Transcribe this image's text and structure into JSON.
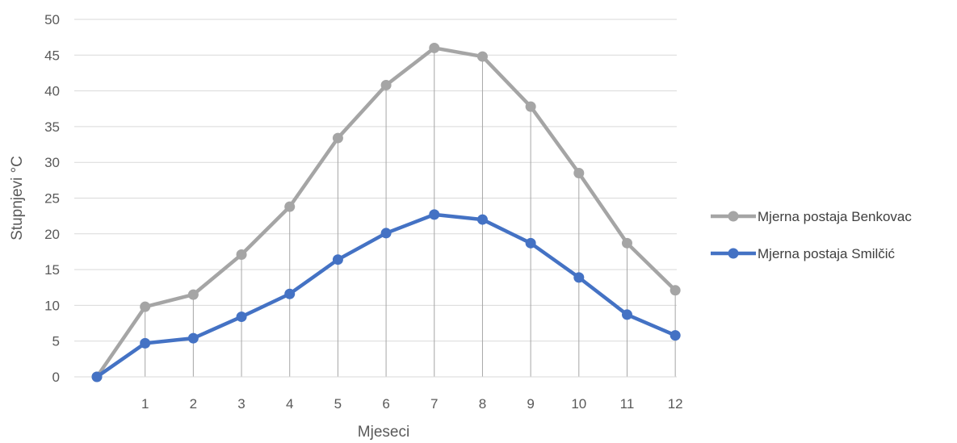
{
  "chart_data": {
    "type": "line",
    "x": [
      0,
      1,
      2,
      3,
      4,
      5,
      6,
      7,
      8,
      9,
      10,
      11,
      12
    ],
    "x_tick_labels": [
      "",
      "1",
      "2",
      "3",
      "4",
      "5",
      "6",
      "7",
      "8",
      "9",
      "10",
      "11",
      "12"
    ],
    "xlabel": "Mjeseci",
    "ylabel": "Stupnjevi °C",
    "ylim": [
      0,
      50
    ],
    "y_ticks": [
      0,
      5,
      10,
      15,
      20,
      25,
      30,
      35,
      40,
      45,
      50
    ],
    "grid": "horizontal",
    "drop_lines": true,
    "legend_position": "right",
    "series": [
      {
        "name": "Mjerna postaja Benkovac",
        "color": "#a5a5a5",
        "values": [
          0,
          9.8,
          11.5,
          17.1,
          23.8,
          33.4,
          40.8,
          46.0,
          44.8,
          37.8,
          28.5,
          18.7,
          12.1
        ]
      },
      {
        "name": "Mjerna postaja Smilčić",
        "color": "#4472c4",
        "values": [
          0,
          4.7,
          5.4,
          8.4,
          11.6,
          16.4,
          20.1,
          22.7,
          22.0,
          18.7,
          13.9,
          8.7,
          5.8
        ]
      }
    ]
  }
}
